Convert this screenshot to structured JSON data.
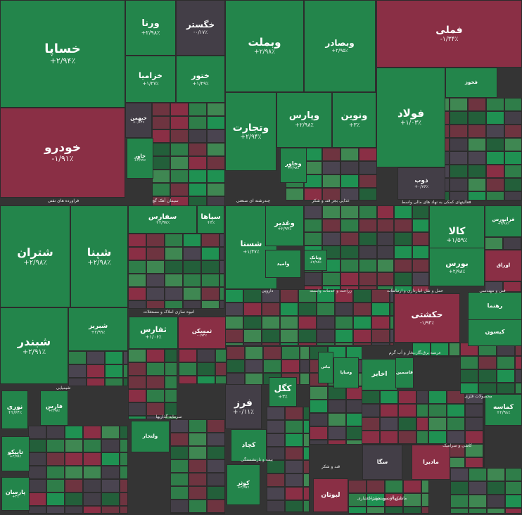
{
  "chart_data": {
    "type": "treemap",
    "colors": {
      "positive_strong": "#1f9152",
      "positive": "#23854b",
      "positive_mid": "#3f8752",
      "neutral": "#433e47",
      "negative": "#8a2f45",
      "negative_dark": "#6e3440"
    },
    "sectors": [
      {
        "name": "فراورده های نفتی"
      },
      {
        "name": "سیمان آهک گچ"
      },
      {
        "name": "چندرشته ای صنعتی"
      },
      {
        "name": "غذایی بجز قند و شکر"
      },
      {
        "name": "فعالیتهای کمکی به نهاد های مالی واسط"
      },
      {
        "name": "شیمیایی"
      },
      {
        "name": "انبوه سازی املاک و مستغلات"
      },
      {
        "name": "دارویی"
      },
      {
        "name": "زراعت و خدمات وابسته"
      },
      {
        "name": "حمل و نقل انبارداری و ارتباطات"
      },
      {
        "name": "فنی و مهندسی"
      },
      {
        "name": "سرمایه گذاریها"
      },
      {
        "name": "کاشی و سرامیک"
      },
      {
        "name": "عرضه برق،گاز،بخار و آب گرم"
      },
      {
        "name": "بانکها و موسسات اعتباری"
      },
      {
        "name": "بیمه و بازنشستگی"
      },
      {
        "name": "قند و شکر"
      },
      {
        "name": "محصولات فلزی"
      },
      {
        "name": "ماشین آلات و تجهیزات"
      }
    ],
    "tiles": [
      {
        "symbol": "خساپا",
        "change": "+۲/۹۴٪",
        "sign": "positive"
      },
      {
        "symbol": "خودرو",
        "change": "-۱/۹۱٪",
        "sign": "negative"
      },
      {
        "symbol": "ورنا",
        "change": "+۲/۹۸٪",
        "sign": "positive"
      },
      {
        "symbol": "خگستر",
        "change": "-۰/۱۷٪",
        "sign": "neutral"
      },
      {
        "symbol": "خزامیا",
        "change": "+۱/۲۷٪",
        "sign": "positive"
      },
      {
        "symbol": "ختور",
        "change": "+۱/۲۹٪",
        "sign": "positive"
      },
      {
        "symbol": "خبهمن",
        "change": "+۰/۶۴٪",
        "sign": "neutral"
      },
      {
        "symbol": "خاور",
        "change": "+۲/۹۷٪",
        "sign": "positive"
      },
      {
        "symbol": "وبملت",
        "change": "+۲/۹۸٪",
        "sign": "positive"
      },
      {
        "symbol": "وبصادر",
        "change": "+۲/۹۵٪",
        "sign": "positive"
      },
      {
        "symbol": "وپارس",
        "change": "+۲/۹۸٪",
        "sign": "positive"
      },
      {
        "symbol": "ونوین",
        "change": "+۳٪",
        "sign": "positive"
      },
      {
        "symbol": "وتجارت",
        "change": "+۲/۹۴٪",
        "sign": "positive"
      },
      {
        "symbol": "وخاور",
        "change": "+۲/۹۸٪",
        "sign": "positive"
      },
      {
        "symbol": "فملی",
        "change": "-۱/۳۴٪",
        "sign": "negative"
      },
      {
        "symbol": "فولاد",
        "change": "+۱/۰۳٪",
        "sign": "positive"
      },
      {
        "symbol": "ذوب",
        "change": "+۰/۷۶٪",
        "sign": "neutral"
      },
      {
        "symbol": "فخوز",
        "change": "",
        "sign": "positive"
      },
      {
        "symbol": "شتران",
        "change": "+۲/۹۸٪",
        "sign": "positive"
      },
      {
        "symbol": "شپنا",
        "change": "+۲/۹۸٪",
        "sign": "positive"
      },
      {
        "symbol": "شبندر",
        "change": "+۲/۹۱٪",
        "sign": "positive"
      },
      {
        "symbol": "شبریز",
        "change": "+۲/۹۹٪",
        "sign": "positive"
      },
      {
        "symbol": "سفارس",
        "change": "+۲/۹۷٪",
        "sign": "positive"
      },
      {
        "symbol": "سپاها",
        "change": "+۳٪",
        "sign": "positive"
      },
      {
        "symbol": "شستا",
        "change": "+۱/۴۷٪",
        "sign": "positive"
      },
      {
        "symbol": "وغدیر",
        "change": "+۲/۹۴٪",
        "sign": "positive"
      },
      {
        "symbol": "وبانک",
        "change": "+۲/۹۸٪",
        "sign": "positive"
      },
      {
        "symbol": "وامید",
        "change": "",
        "sign": "positive"
      },
      {
        "symbol": "کالا",
        "change": "+۱/۵۹٪",
        "sign": "positive"
      },
      {
        "symbol": "بورس",
        "change": "+۲/۹۸٪",
        "sign": "positive"
      },
      {
        "symbol": "فرابورس",
        "change": "+۲/۹۸٪",
        "sign": "positive"
      },
      {
        "symbol": "اوراق",
        "change": "",
        "sign": "negative"
      },
      {
        "symbol": "حکشتی",
        "change": "-۱/۹۴٪",
        "sign": "negative"
      },
      {
        "symbol": "ثفارس",
        "change": "+۱/۰۶٪",
        "sign": "positive"
      },
      {
        "symbol": "ثمسکن",
        "change": "-۰/۷۴٪",
        "sign": "negative"
      },
      {
        "symbol": "فرز",
        "change": "+۰/۱۱٪",
        "sign": "neutral"
      },
      {
        "symbol": "کگل",
        "change": "+۳٪",
        "sign": "positive"
      },
      {
        "symbol": "کچاد",
        "change": "",
        "sign": "positive"
      },
      {
        "symbol": "اخابر",
        "change": "",
        "sign": "positive"
      },
      {
        "symbol": "کوثر",
        "change": "+۲/۹۷٪",
        "sign": "positive"
      },
      {
        "symbol": "کماسه",
        "change": "+۲/۹۸٪",
        "sign": "positive"
      },
      {
        "symbol": "نوری",
        "change": "+۲/۶۴٪",
        "sign": "positive"
      },
      {
        "symbol": "فارس",
        "change": "+۲/۹۸٪",
        "sign": "positive"
      },
      {
        "symbol": "تاپیکو",
        "change": "+۲/۹۹٪",
        "sign": "positive"
      },
      {
        "symbol": "پارسان",
        "change": "+۳٪",
        "sign": "positive"
      },
      {
        "symbol": "فاسمین",
        "change": "",
        "sign": "positive"
      },
      {
        "symbol": "ولتجار",
        "change": "",
        "sign": "positive"
      },
      {
        "symbol": "کیسون",
        "change": "",
        "sign": "positive"
      },
      {
        "symbol": "رهنما",
        "change": "",
        "sign": "positive"
      },
      {
        "symbol": "وساپا",
        "change": "",
        "sign": "positive"
      },
      {
        "symbol": "بپاس",
        "change": "",
        "sign": "positive"
      },
      {
        "symbol": "سگا",
        "change": "",
        "sign": "neutral"
      },
      {
        "symbol": "مادیرا",
        "change": "",
        "sign": "negative"
      },
      {
        "symbol": "لبوتان",
        "change": "",
        "sign": "negative"
      }
    ]
  }
}
